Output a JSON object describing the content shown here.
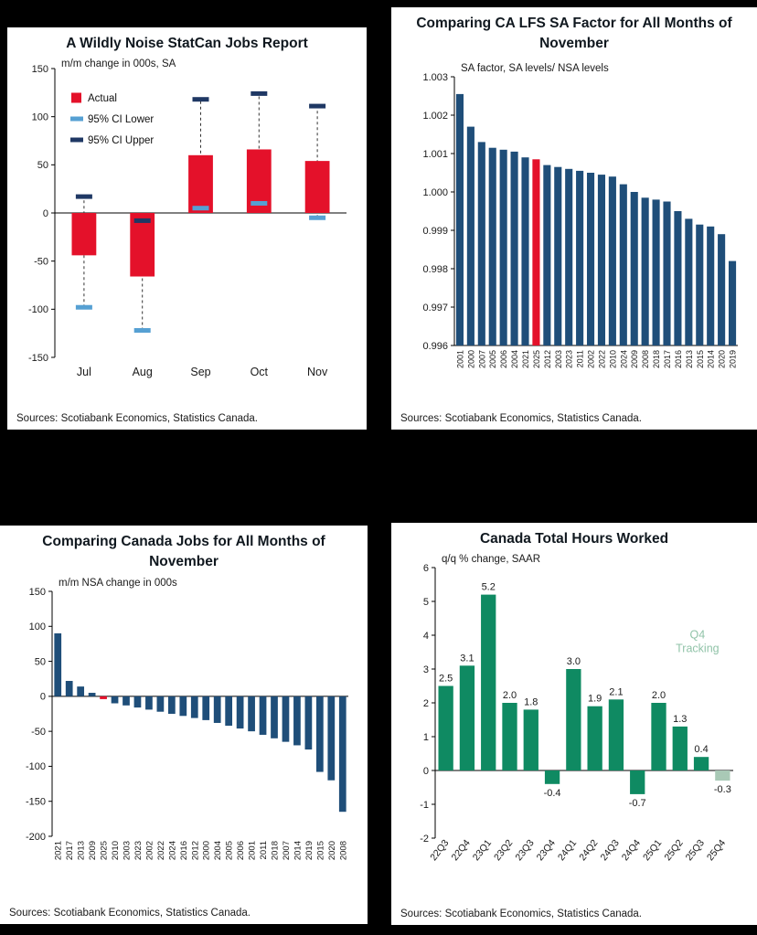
{
  "page": {
    "background": "#000000"
  },
  "chart_data": [
    {
      "type": "ci-bar",
      "title": "A Wildly Noise StatCan Jobs Report",
      "ylabel": "m/m change in 000s, SA",
      "sources": "Sources: Scotiabank Economics, Statistics Canada.",
      "categories": [
        "Jul",
        "Aug",
        "Sep",
        "Oct",
        "Nov"
      ],
      "series": {
        "actual": [
          -44,
          -66,
          60,
          66,
          54
        ],
        "ci_lower": [
          -98,
          -122,
          5,
          10,
          -5
        ],
        "ci_upper": [
          17,
          -8,
          118,
          124,
          111
        ]
      },
      "legend": [
        {
          "label": "Actual",
          "shape": "square",
          "color": "#e4112a"
        },
        {
          "label": "95% CI Lower",
          "shape": "dash",
          "color": "#56a0d3"
        },
        {
          "label": "95% CI Upper",
          "shape": "dash",
          "color": "#1f3864"
        }
      ],
      "colors": {
        "actual": "#e4112a",
        "lower_cap": "#56a0d3",
        "upper_cap": "#1f3864",
        "whisker": "#333333"
      },
      "ylim": [
        -150,
        150
      ],
      "ytick_step": 50,
      "tick_decimals": 0
    },
    {
      "type": "bar",
      "title": "Comparing CA LFS SA Factor for All Months of November",
      "ylabel": "SA factor, SA levels/ NSA levels",
      "sources": "Sources: Scotiabank Economics, Statistics Canada.",
      "categories": [
        "2001",
        "2000",
        "2007",
        "2005",
        "2006",
        "2004",
        "2021",
        "2025",
        "2012",
        "2003",
        "2023",
        "2011",
        "2002",
        "2022",
        "2010",
        "2024",
        "2009",
        "2008",
        "2018",
        "2017",
        "2016",
        "2013",
        "2015",
        "2014",
        "2020",
        "2019"
      ],
      "values": [
        1.00255,
        1.0017,
        1.0013,
        1.00115,
        1.0011,
        1.00105,
        1.0009,
        1.00085,
        1.0007,
        1.00065,
        1.0006,
        1.00055,
        1.0005,
        1.00045,
        1.0004,
        1.0002,
        1.0,
        0.99985,
        0.9998,
        0.99975,
        0.9995,
        0.9993,
        0.99915,
        0.9991,
        0.9989,
        0.9982
      ],
      "bar_color": "#1f4e79",
      "highlight": {
        "index": 7,
        "color": "#e4112a"
      },
      "ylim": [
        0.996,
        1.003
      ],
      "ytick_step": 0.001,
      "tick_decimals": 3,
      "baseline": 0.996
    },
    {
      "type": "bar",
      "title": "Comparing Canada Jobs for All Months of November",
      "ylabel": "m/m NSA change in 000s",
      "sources": "Sources: Scotiabank Economics, Statistics Canada.",
      "categories": [
        "2021",
        "2017",
        "2013",
        "2009",
        "2025",
        "2010",
        "2003",
        "2023",
        "2002",
        "2022",
        "2024",
        "2016",
        "2012",
        "2000",
        "2004",
        "2005",
        "2006",
        "2001",
        "2011",
        "2018",
        "2007",
        "2014",
        "2019",
        "2015",
        "2020",
        "2008"
      ],
      "values": [
        90,
        22,
        14,
        5,
        -4,
        -10,
        -13,
        -16,
        -19,
        -22,
        -25,
        -28,
        -31,
        -34,
        -38,
        -42,
        -46,
        -50,
        -55,
        -60,
        -65,
        -70,
        -76,
        -108,
        -120,
        -165
      ],
      "bar_color": "#1f4e79",
      "highlight": {
        "index": 4,
        "color": "#e4112a"
      },
      "ylim": [
        -200,
        150
      ],
      "ytick_step": 50,
      "tick_decimals": 0,
      "baseline": 0
    },
    {
      "type": "bar",
      "title": "Canada Total Hours Worked",
      "ylabel": "q/q % change, SAAR",
      "sources": "Sources: Scotiabank Economics, Statistics Canada.",
      "categories": [
        "22Q3",
        "22Q4",
        "23Q1",
        "23Q2",
        "23Q3",
        "23Q4",
        "24Q1",
        "24Q2",
        "24Q3",
        "24Q4",
        "25Q1",
        "25Q2",
        "25Q3",
        "25Q4"
      ],
      "values": [
        2.5,
        3.1,
        5.2,
        2.0,
        1.8,
        -0.4,
        3.0,
        1.9,
        2.1,
        -0.7,
        2.0,
        1.3,
        0.4,
        -0.3
      ],
      "bar_color": "#0f8a62",
      "last_color": "#a9c9b6",
      "value_labels": true,
      "annotation": {
        "lines": [
          "Q4",
          "Tracking"
        ],
        "color": "#90c3a8",
        "x_frac": 0.88,
        "y_value": 3.9
      },
      "ylim": [
        -2,
        6
      ],
      "ytick_step": 1,
      "tick_decimals": 0,
      "baseline": 0
    }
  ]
}
